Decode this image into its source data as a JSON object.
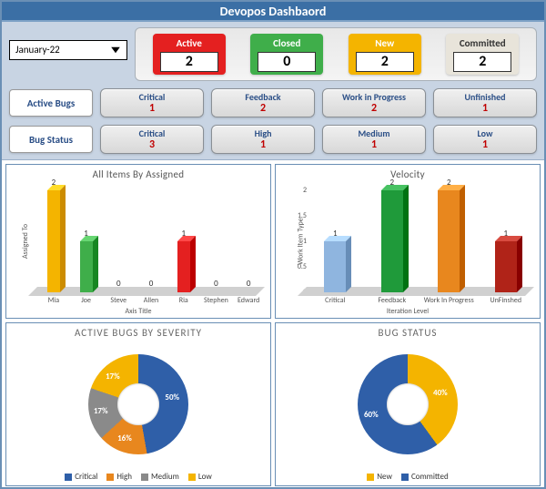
{
  "title": "Devopos Dashbaord",
  "dropdown": {
    "selected": "January-22"
  },
  "status_cards": [
    {
      "label": "Active",
      "value": "2",
      "color": "#e42020"
    },
    {
      "label": "Closed",
      "value": "0",
      "color": "#3fae4a"
    },
    {
      "label": "New",
      "value": "2",
      "color": "#f4b400"
    },
    {
      "label": "Committed",
      "value": "2",
      "color": "#e8e4da"
    }
  ],
  "active_bugs_label": "Active Bugs",
  "bug_status_label": "Bug Status",
  "active_bugs_row": [
    {
      "label": "Critical",
      "value": "1"
    },
    {
      "label": "Feedback",
      "value": "2"
    },
    {
      "label": "Work in Progress",
      "value": "2"
    },
    {
      "label": "Unfinished",
      "value": "1"
    }
  ],
  "bug_status_row": [
    {
      "label": "Critical",
      "value": "3"
    },
    {
      "label": "High",
      "value": "1"
    },
    {
      "label": "Medium",
      "value": "1"
    },
    {
      "label": "Low",
      "value": "1"
    }
  ],
  "assigned_chart": {
    "title": "All Items By Assigned",
    "ylabel": "Assigned To",
    "xlabel": "Axis Title",
    "ymax": 2,
    "categories": [
      "Mia",
      "Joe",
      "Steve",
      "Allen",
      "Ria",
      "Stephen",
      "Edward"
    ],
    "values": [
      2,
      1,
      0,
      0,
      1,
      0,
      0
    ],
    "colors": [
      "#f4b400",
      "#3fae4a",
      "#807f7f",
      "#807f7f",
      "#e42020",
      "#807f7f",
      "#807f7f"
    ]
  },
  "velocity_chart": {
    "title": "Velocity",
    "ylabel": "Work Item Type",
    "xlabel": "Iteration Level",
    "ymax": 2,
    "yticks": [
      "0",
      "0.5",
      "1",
      "1.5",
      "2"
    ],
    "categories": [
      "Critical",
      "Feedback",
      "Work In Progress",
      "UnFinshed"
    ],
    "values": [
      1,
      2,
      2,
      1
    ],
    "colors": [
      "#8fb5df",
      "#1f9a3a",
      "#e8871e",
      "#b02318"
    ]
  },
  "severity_donut": {
    "title": "ACTIVE BUGS BY SEVERITY",
    "slices": [
      {
        "name": "Critical",
        "pct": 50,
        "color": "#2f5fa8"
      },
      {
        "name": "High",
        "pct": 16,
        "color": "#e8871e"
      },
      {
        "name": "Medium",
        "pct": 17,
        "color": "#8a8a8a"
      },
      {
        "name": "Low",
        "pct": 17,
        "color": "#f4b400"
      }
    ],
    "legend": [
      "Critical",
      "High",
      "Medium",
      "Low"
    ]
  },
  "bugstatus_donut": {
    "title": "BUG STATUS",
    "slices": [
      {
        "name": "New",
        "pct": 40,
        "color": "#f4b400"
      },
      {
        "name": "Committed",
        "pct": 60,
        "color": "#2f5fa8"
      }
    ],
    "legend": [
      "New",
      "Committed"
    ]
  }
}
